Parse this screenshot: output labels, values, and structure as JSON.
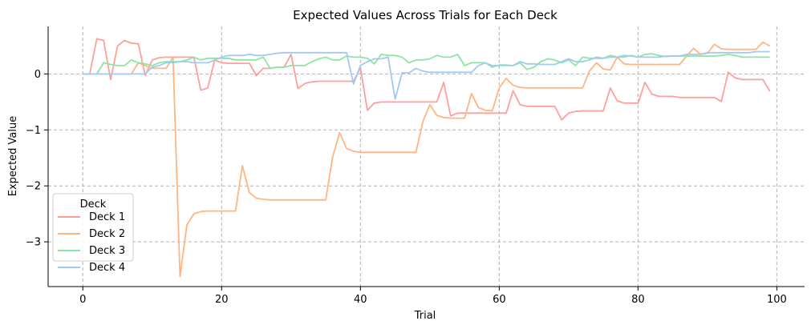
{
  "chart_data": {
    "type": "line",
    "title": "Expected Values Across Trials for Each Deck",
    "xlabel": "Trial",
    "ylabel": "Expected Value",
    "xlim": [
      -5,
      104
    ],
    "ylim": [
      -3.8,
      0.85
    ],
    "xticks": [
      0,
      20,
      40,
      60,
      80,
      100
    ],
    "yticks": [
      -3,
      -2,
      -1,
      0
    ],
    "grid": true,
    "legend": {
      "title": "Deck",
      "position": "lower-left"
    },
    "series": [
      {
        "name": "Deck 1",
        "color": "#ff9f9b",
        "x": [
          0,
          1,
          2,
          3,
          4,
          5,
          6,
          7,
          8,
          9,
          10,
          11,
          12,
          13,
          14,
          15,
          16,
          17,
          18,
          19,
          20,
          21,
          22,
          23,
          24,
          25,
          26,
          27,
          28,
          29,
          30,
          31,
          32,
          33,
          34,
          35,
          36,
          37,
          38,
          39,
          40,
          41,
          42,
          43,
          44,
          45,
          46,
          47,
          48,
          49,
          50,
          51,
          52,
          53,
          54,
          55,
          56,
          57,
          58,
          59,
          60,
          61,
          62,
          63,
          64,
          65,
          66,
          67,
          68,
          69,
          70,
          71,
          72,
          73,
          74,
          75,
          76,
          77,
          78,
          79,
          80,
          81,
          82,
          83,
          84,
          85,
          86,
          87,
          88,
          89,
          90,
          91,
          92,
          93,
          94,
          95,
          96,
          97,
          98,
          99
        ],
        "values": [
          0,
          0,
          0.63,
          0.6,
          -0.1,
          0.5,
          0.6,
          0.55,
          0.54,
          -0.03,
          0.25,
          0.29,
          0.3,
          0.3,
          0.3,
          0.3,
          0.3,
          -0.29,
          -0.25,
          0.25,
          0.2,
          0.19,
          0.19,
          0.19,
          0.19,
          -0.03,
          0.1,
          0.1,
          0.12,
          0.12,
          0.35,
          -0.26,
          -0.17,
          -0.14,
          -0.13,
          -0.13,
          -0.13,
          -0.13,
          -0.13,
          -0.13,
          0.11,
          -0.65,
          -0.52,
          -0.5,
          -0.5,
          -0.5,
          -0.5,
          -0.5,
          -0.5,
          -0.5,
          -0.5,
          -0.5,
          -0.15,
          -0.75,
          -0.7,
          -0.7,
          -0.7,
          -0.7,
          -0.7,
          -0.7,
          -0.7,
          -0.7,
          -0.3,
          -0.55,
          -0.58,
          -0.58,
          -0.58,
          -0.58,
          -0.58,
          -0.82,
          -0.7,
          -0.67,
          -0.66,
          -0.66,
          -0.66,
          -0.66,
          -0.25,
          -0.48,
          -0.52,
          -0.52,
          -0.52,
          -0.15,
          -0.36,
          -0.4,
          -0.4,
          -0.4,
          -0.42,
          -0.42,
          -0.42,
          -0.42,
          -0.42,
          -0.42,
          -0.49,
          0.03,
          -0.07,
          -0.1,
          -0.1,
          -0.1,
          -0.1,
          -0.31
        ]
      },
      {
        "name": "Deck 2",
        "color": "#ffb482",
        "x": [
          0,
          1,
          2,
          3,
          4,
          5,
          6,
          7,
          8,
          9,
          10,
          11,
          12,
          13,
          14,
          15,
          16,
          17,
          18,
          19,
          20,
          21,
          22,
          23,
          24,
          25,
          26,
          27,
          28,
          29,
          30,
          31,
          32,
          33,
          34,
          35,
          36,
          37,
          38,
          39,
          40,
          41,
          42,
          43,
          44,
          45,
          46,
          47,
          48,
          49,
          50,
          51,
          52,
          53,
          54,
          55,
          56,
          57,
          58,
          59,
          60,
          61,
          62,
          63,
          64,
          65,
          66,
          67,
          68,
          69,
          70,
          71,
          72,
          73,
          74,
          75,
          76,
          77,
          78,
          79,
          80,
          81,
          82,
          83,
          84,
          85,
          86,
          87,
          88,
          89,
          90,
          91,
          92,
          93,
          94,
          95,
          96,
          97,
          98,
          99
        ],
        "values": [
          0,
          0,
          0,
          0,
          0,
          0,
          0,
          0,
          0.2,
          0.15,
          0.1,
          0.1,
          0.1,
          0.3,
          -3.62,
          -2.7,
          -2.5,
          -2.46,
          -2.45,
          -2.45,
          -2.45,
          -2.45,
          -2.45,
          -1.64,
          -2.12,
          -2.22,
          -2.24,
          -2.25,
          -2.25,
          -2.25,
          -2.25,
          -2.25,
          -2.25,
          -2.25,
          -2.25,
          -2.25,
          -1.48,
          -1.05,
          -1.33,
          -1.38,
          -1.4,
          -1.4,
          -1.4,
          -1.4,
          -1.4,
          -1.4,
          -1.4,
          -1.4,
          -1.4,
          -0.85,
          -0.55,
          -0.74,
          -0.78,
          -0.79,
          -0.79,
          -0.79,
          -0.35,
          -0.6,
          -0.65,
          -0.66,
          -0.25,
          -0.08,
          -0.2,
          -0.24,
          -0.25,
          -0.25,
          -0.25,
          -0.25,
          -0.25,
          -0.25,
          -0.25,
          -0.25,
          -0.25,
          0.05,
          0.2,
          0.09,
          0.07,
          0.3,
          0.18,
          0.17,
          0.17,
          0.17,
          0.17,
          0.17,
          0.17,
          0.17,
          0.17,
          0.32,
          0.46,
          0.35,
          0.37,
          0.53,
          0.45,
          0.44,
          0.44,
          0.44,
          0.44,
          0.44,
          0.57,
          0.5
        ]
      },
      {
        "name": "Deck 3",
        "color": "#8de5a1",
        "x": [
          0,
          1,
          2,
          3,
          4,
          5,
          6,
          7,
          8,
          9,
          10,
          11,
          12,
          13,
          14,
          15,
          16,
          17,
          18,
          19,
          20,
          21,
          22,
          23,
          24,
          25,
          26,
          27,
          28,
          29,
          30,
          31,
          32,
          33,
          34,
          35,
          36,
          37,
          38,
          39,
          40,
          41,
          42,
          43,
          44,
          45,
          46,
          47,
          48,
          49,
          50,
          51,
          52,
          53,
          54,
          55,
          56,
          57,
          58,
          59,
          60,
          61,
          62,
          63,
          64,
          65,
          66,
          67,
          68,
          69,
          70,
          71,
          72,
          73,
          74,
          75,
          76,
          77,
          78,
          79,
          80,
          81,
          82,
          83,
          84,
          85,
          86,
          87,
          88,
          89,
          90,
          91,
          92,
          93,
          94,
          95,
          96,
          97,
          98,
          99
        ],
        "values": [
          0,
          0,
          0,
          0.2,
          0.17,
          0.15,
          0.15,
          0.25,
          0.2,
          0.18,
          0.15,
          0.2,
          0.22,
          0.22,
          0.22,
          0.25,
          0.3,
          0.25,
          0.28,
          0.28,
          0.28,
          0.28,
          0.25,
          0.25,
          0.25,
          0.25,
          0.3,
          0.1,
          0.12,
          0.12,
          0.15,
          0.15,
          0.15,
          0.22,
          0.27,
          0.3,
          0.25,
          0.25,
          0.32,
          0.3,
          0.3,
          0.28,
          0.18,
          0.35,
          0.33,
          0.33,
          0.3,
          0.2,
          0.25,
          0.25,
          0.27,
          0.33,
          0.3,
          0.3,
          0.35,
          0.15,
          0.2,
          0.2,
          0.2,
          0.12,
          0.16,
          0.16,
          0.15,
          0.2,
          0.08,
          0.12,
          0.22,
          0.27,
          0.25,
          0.2,
          0.25,
          0.15,
          0.3,
          0.28,
          0.28,
          0.28,
          0.33,
          0.3,
          0.3,
          0.33,
          0.3,
          0.35,
          0.36,
          0.33,
          0.31,
          0.32,
          0.32,
          0.32,
          0.32,
          0.32,
          0.32,
          0.32,
          0.33,
          0.35,
          0.33,
          0.3,
          0.3,
          0.3,
          0.3,
          0.3
        ]
      },
      {
        "name": "Deck 4",
        "color": "#a1c9f4",
        "x": [
          0,
          1,
          2,
          3,
          4,
          5,
          6,
          7,
          8,
          9,
          10,
          11,
          12,
          13,
          14,
          15,
          16,
          17,
          18,
          19,
          20,
          21,
          22,
          23,
          24,
          25,
          26,
          27,
          28,
          29,
          30,
          31,
          32,
          33,
          34,
          35,
          36,
          37,
          38,
          39,
          40,
          41,
          42,
          43,
          44,
          45,
          46,
          47,
          48,
          49,
          50,
          51,
          52,
          53,
          54,
          55,
          56,
          57,
          58,
          59,
          60,
          61,
          62,
          63,
          64,
          65,
          66,
          67,
          68,
          69,
          70,
          71,
          72,
          73,
          74,
          75,
          76,
          77,
          78,
          79,
          80,
          81,
          82,
          83,
          84,
          85,
          86,
          87,
          88,
          89,
          90,
          91,
          92,
          93,
          94,
          95,
          96,
          97,
          98,
          99
        ],
        "values": [
          0,
          0,
          0,
          0,
          0,
          0,
          0,
          0,
          0,
          0,
          0.12,
          0.15,
          0.2,
          0.2,
          0.22,
          0.22,
          0.2,
          0.2,
          0.2,
          0.25,
          0.3,
          0.33,
          0.33,
          0.33,
          0.35,
          0.33,
          0.33,
          0.35,
          0.37,
          0.38,
          0.38,
          0.38,
          0.38,
          0.38,
          0.38,
          0.38,
          0.38,
          0.38,
          0.38,
          -0.18,
          0.15,
          0.22,
          0.27,
          0.27,
          0.3,
          -0.45,
          0.02,
          0.02,
          0.1,
          0.05,
          0.03,
          0.03,
          0.03,
          0.03,
          0.03,
          0.03,
          0.03,
          0.15,
          0.2,
          0.15,
          0.15,
          0.15,
          0.15,
          0.22,
          0.18,
          0.18,
          0.17,
          0.17,
          0.17,
          0.22,
          0.27,
          0.22,
          0.22,
          0.25,
          0.3,
          0.28,
          0.3,
          0.3,
          0.33,
          0.32,
          0.3,
          0.3,
          0.3,
          0.3,
          0.32,
          0.32,
          0.32,
          0.35,
          0.35,
          0.35,
          0.38,
          0.38,
          0.38,
          0.38,
          0.38,
          0.38,
          0.38,
          0.4,
          0.4,
          0.4
        ]
      }
    ]
  }
}
